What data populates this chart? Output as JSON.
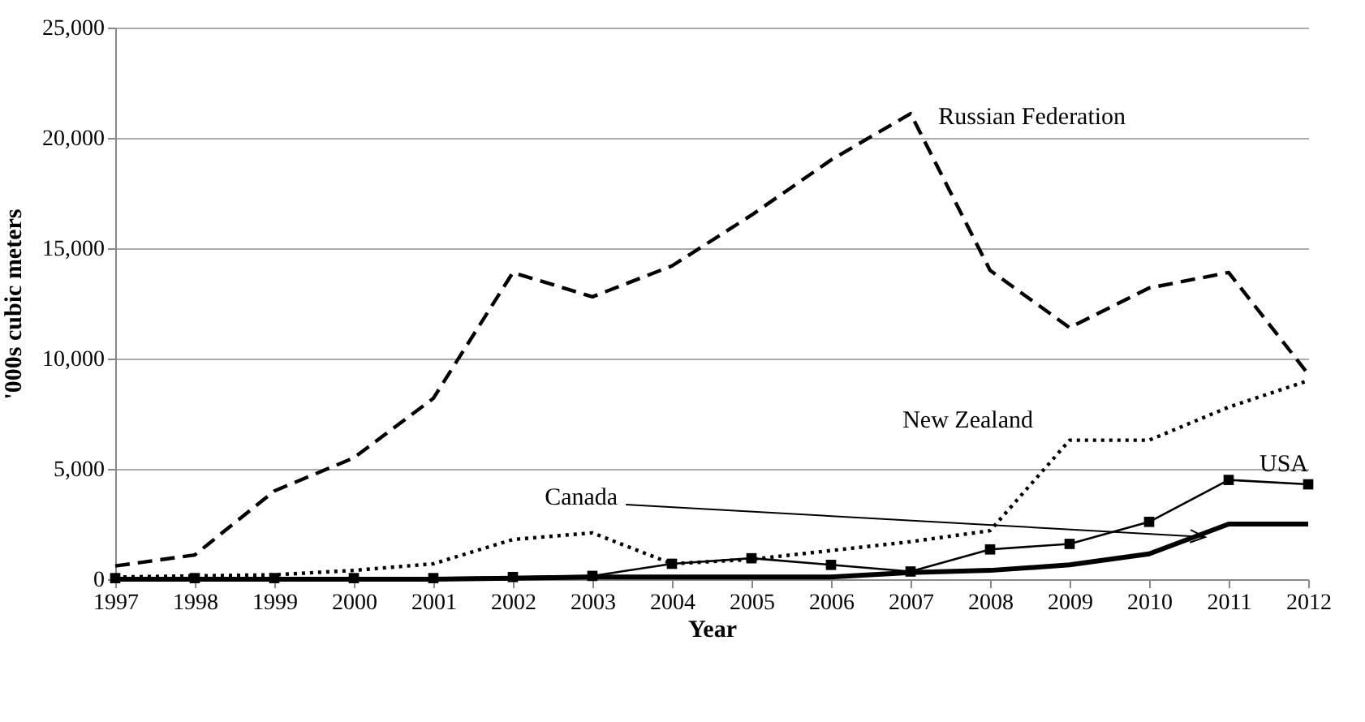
{
  "chart_data": {
    "type": "line",
    "xlabel": "Year",
    "ylabel": "'000s cubic meters",
    "x": [
      1997,
      1998,
      1999,
      2000,
      2001,
      2002,
      2003,
      2004,
      2005,
      2006,
      2007,
      2008,
      2009,
      2010,
      2011,
      2012
    ],
    "xlim": [
      1997,
      2012
    ],
    "xticks": [
      1997,
      1998,
      1999,
      2000,
      2001,
      2002,
      2003,
      2004,
      2005,
      2006,
      2007,
      2008,
      2009,
      2010,
      2011,
      2012
    ],
    "ylim": [
      0,
      25000
    ],
    "yticks": [
      {
        "value": 0,
        "label": "0"
      },
      {
        "value": 5000,
        "label": "5,000"
      },
      {
        "value": 10000,
        "label": "10,000"
      },
      {
        "value": 15000,
        "label": "15,000"
      },
      {
        "value": 20000,
        "label": "20,000"
      },
      {
        "value": 25000,
        "label": "25,000"
      }
    ],
    "grid": "y",
    "legend": false,
    "series": [
      {
        "name": "Russian Federation",
        "color": "#000000",
        "line_style": "dashed",
        "marker": "none",
        "values": [
          600,
          1100,
          4000,
          5500,
          8200,
          13900,
          12800,
          14200,
          16500,
          19000,
          21100,
          14000,
          11400,
          13200,
          13900,
          9300
        ]
      },
      {
        "name": "New Zealand",
        "color": "#000000",
        "line_style": "dotted",
        "marker": "none",
        "values": [
          100,
          150,
          200,
          400,
          700,
          1800,
          2100,
          700,
          900,
          1300,
          1700,
          2200,
          6300,
          6300,
          7800,
          9000
        ]
      },
      {
        "name": "USA",
        "color": "#000000",
        "line_style": "solid",
        "marker": "square",
        "values": [
          50,
          50,
          50,
          50,
          50,
          100,
          150,
          700,
          950,
          650,
          350,
          1350,
          1600,
          2600,
          4500,
          4300
        ]
      },
      {
        "name": "Canada",
        "color": "#000000",
        "line_style": "solid",
        "marker": "none",
        "values": [
          0,
          0,
          0,
          0,
          0,
          50,
          100,
          100,
          100,
          100,
          300,
          400,
          650,
          1150,
          2500,
          2500
        ]
      }
    ]
  }
}
